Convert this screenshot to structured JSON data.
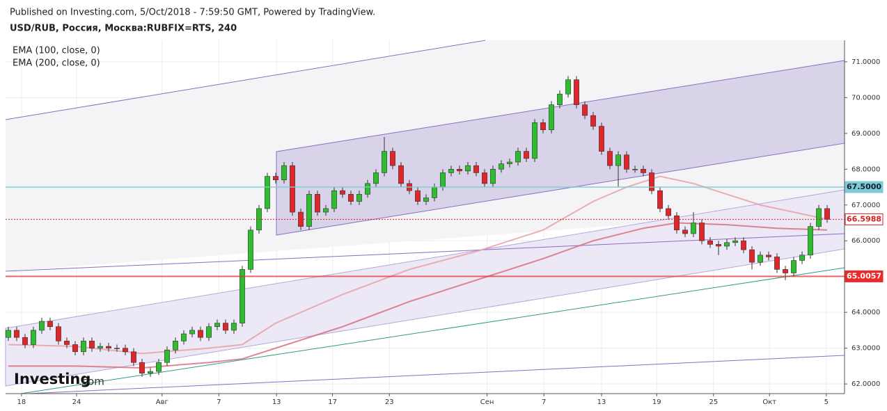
{
  "header": {
    "published": "Published on Investing.com, 5/Oct/2018 - 7:59:50 GMT, Powered by TradingView.",
    "symbol": "USD/RUB, Россия, Москва:RUBFIX=RTS, 240"
  },
  "logo": {
    "brand": "Investing",
    "suffix": ".com"
  },
  "chart_data": {
    "type": "candlestick",
    "up_color": "#2ebd2e",
    "down_color": "#e0262a",
    "xlim": [
      -0.33,
      100.08
    ],
    "ylim": [
      61.73,
      71.6
    ],
    "grid": true,
    "xticks": [
      {
        "value": 1.58,
        "label": "18"
      },
      {
        "value": 8.17,
        "label": "24"
      },
      {
        "value": 18.4,
        "label": "Авг"
      },
      {
        "value": 25.2,
        "label": "7"
      },
      {
        "value": 32.1,
        "label": "13"
      },
      {
        "value": 38.8,
        "label": "17"
      },
      {
        "value": 45.6,
        "label": "23"
      },
      {
        "value": 57.3,
        "label": "Сен"
      },
      {
        "value": 64.1,
        "label": "7"
      },
      {
        "value": 71.0,
        "label": "13"
      },
      {
        "value": 77.6,
        "label": "19"
      },
      {
        "value": 84.4,
        "label": "25"
      },
      {
        "value": 91.1,
        "label": "Окт"
      },
      {
        "value": 97.9,
        "label": "5"
      }
    ],
    "yticks": [
      {
        "value": 62,
        "label": "62.0000"
      },
      {
        "value": 63,
        "label": "63.0000"
      },
      {
        "value": 64,
        "label": "64.0000"
      },
      {
        "value": 65,
        "label": "65.0000"
      },
      {
        "value": 66,
        "label": "66.0000"
      },
      {
        "value": 67,
        "label": "67.0000"
      },
      {
        "value": 68,
        "label": "68.0000"
      },
      {
        "value": 69,
        "label": "69.0000"
      },
      {
        "value": 70,
        "label": "70.0000"
      },
      {
        "value": 71,
        "label": "71.0000"
      }
    ],
    "open": [
      63.3,
      63.5,
      63.3,
      63.1,
      63.5,
      63.75,
      63.6,
      63.2,
      63.1,
      62.9,
      63.2,
      63.0,
      63.05,
      63.0,
      63.0,
      62.9,
      62.6,
      62.3,
      62.35,
      62.6,
      62.95,
      63.2,
      63.4,
      63.5,
      63.3,
      63.6,
      63.7,
      63.5,
      63.7,
      65.2,
      66.3,
      66.9,
      67.8,
      67.7,
      68.1,
      66.8,
      66.4,
      67.3,
      66.8,
      66.9,
      67.4,
      67.3,
      67.1,
      67.3,
      67.6,
      67.9,
      68.5,
      68.1,
      67.6,
      67.4,
      67.1,
      67.2,
      67.5,
      67.9,
      68.0,
      67.95,
      68.1,
      67.9,
      67.6,
      68.0,
      68.15,
      68.2,
      68.5,
      68.3,
      69.3,
      69.1,
      69.8,
      70.1,
      70.5,
      69.8,
      69.5,
      69.2,
      68.5,
      68.1,
      68.4,
      68.0,
      68.0,
      67.9,
      67.4,
      66.9,
      66.7,
      66.3,
      66.2,
      66.5,
      66.0,
      65.9,
      65.85,
      65.95,
      66.0,
      65.75,
      65.4,
      65.6,
      65.55,
      65.2,
      65.1,
      65.45,
      65.6,
      66.4,
      66.9
    ],
    "high": [
      63.6,
      63.6,
      63.4,
      63.6,
      63.85,
      63.85,
      63.7,
      63.3,
      63.2,
      63.3,
      63.3,
      63.15,
      63.15,
      63.1,
      63.1,
      63.0,
      62.7,
      62.45,
      62.7,
      63.05,
      63.3,
      63.5,
      63.6,
      63.6,
      63.7,
      63.8,
      63.8,
      63.8,
      65.3,
      66.4,
      67.0,
      67.9,
      67.9,
      68.2,
      68.2,
      66.9,
      67.4,
      67.4,
      67.0,
      67.5,
      67.5,
      67.4,
      67.4,
      67.7,
      68.0,
      68.9,
      68.6,
      68.2,
      67.7,
      67.5,
      67.3,
      67.6,
      68.0,
      68.1,
      68.1,
      68.2,
      68.2,
      68.0,
      68.1,
      68.25,
      68.3,
      68.6,
      68.6,
      69.4,
      69.4,
      69.9,
      70.2,
      70.6,
      70.6,
      69.9,
      69.6,
      69.3,
      68.6,
      68.5,
      68.5,
      68.1,
      68.1,
      68.0,
      67.5,
      67.0,
      66.8,
      66.4,
      66.8,
      66.6,
      66.1,
      66.0,
      66.05,
      66.1,
      66.1,
      65.85,
      65.7,
      65.7,
      65.65,
      65.3,
      65.55,
      65.7,
      66.5,
      67.0,
      67.0
    ],
    "low": [
      63.2,
      63.2,
      63.0,
      63.0,
      63.4,
      63.5,
      63.1,
      63.0,
      62.8,
      62.8,
      62.9,
      62.9,
      62.9,
      62.9,
      62.8,
      62.5,
      62.2,
      62.2,
      62.25,
      62.5,
      62.85,
      63.1,
      63.3,
      63.2,
      63.2,
      63.5,
      63.4,
      63.4,
      63.6,
      65.1,
      66.2,
      66.8,
      67.6,
      67.6,
      66.7,
      66.3,
      66.3,
      66.7,
      66.7,
      66.8,
      67.2,
      67.0,
      67.0,
      67.2,
      67.5,
      67.8,
      68.0,
      67.5,
      67.3,
      67.0,
      67.0,
      67.1,
      67.4,
      67.8,
      67.85,
      67.85,
      67.8,
      67.5,
      67.5,
      67.9,
      68.05,
      68.1,
      68.2,
      68.2,
      69.0,
      69.0,
      69.7,
      70.0,
      69.7,
      69.4,
      69.1,
      68.4,
      68.0,
      67.5,
      67.9,
      67.9,
      67.8,
      67.3,
      66.8,
      66.6,
      66.2,
      66.1,
      66.1,
      65.9,
      65.8,
      65.6,
      65.75,
      65.85,
      65.65,
      65.2,
      65.3,
      65.45,
      65.1,
      64.9,
      65.0,
      65.35,
      65.5,
      66.3,
      66.5
    ],
    "close": [
      63.5,
      63.3,
      63.1,
      63.5,
      63.75,
      63.6,
      63.2,
      63.1,
      62.9,
      63.2,
      63.0,
      63.05,
      63.0,
      63.0,
      62.9,
      62.6,
      62.3,
      62.35,
      62.6,
      62.95,
      63.2,
      63.4,
      63.5,
      63.3,
      63.6,
      63.7,
      63.5,
      63.7,
      65.2,
      66.3,
      66.9,
      67.8,
      67.7,
      68.1,
      66.8,
      66.4,
      67.3,
      66.8,
      66.9,
      67.4,
      67.3,
      67.1,
      67.3,
      67.6,
      67.9,
      68.5,
      68.1,
      67.6,
      67.4,
      67.1,
      67.2,
      67.5,
      67.9,
      68.0,
      67.95,
      68.1,
      67.9,
      67.6,
      68.0,
      68.15,
      68.2,
      68.5,
      68.3,
      69.3,
      69.1,
      69.8,
      70.1,
      70.5,
      69.8,
      69.5,
      69.2,
      68.5,
      68.1,
      68.4,
      68.0,
      68.0,
      67.9,
      67.4,
      66.9,
      66.7,
      66.3,
      66.2,
      66.5,
      66.0,
      65.9,
      65.85,
      65.95,
      66.0,
      65.75,
      65.4,
      65.6,
      65.55,
      65.2,
      65.1,
      65.45,
      65.6,
      66.4,
      66.9,
      66.6
    ],
    "series": [
      {
        "name": "EMA (100, close, 0)",
        "color": "#e8a0a6",
        "x": [
          0,
          8,
          16,
          24,
          28,
          32,
          40,
          48,
          56,
          64,
          70,
          74,
          78,
          82,
          86,
          90,
          94,
          98
        ],
        "values": [
          63.1,
          63.05,
          62.85,
          63.0,
          63.1,
          63.7,
          64.5,
          65.2,
          65.7,
          66.3,
          67.1,
          67.5,
          67.8,
          67.6,
          67.3,
          67.0,
          66.8,
          66.6
        ]
      },
      {
        "name": "EMA (200, close, 0)",
        "color": "#d8727c",
        "x": [
          0,
          8,
          16,
          24,
          28,
          32,
          40,
          48,
          56,
          64,
          70,
          76,
          80,
          86,
          92,
          98
        ],
        "values": [
          62.5,
          62.5,
          62.45,
          62.6,
          62.7,
          63.0,
          63.6,
          64.3,
          64.9,
          65.5,
          66.0,
          66.35,
          66.5,
          66.45,
          66.35,
          66.3
        ]
      }
    ],
    "levels": [
      {
        "value": 67.5,
        "label": "67.5000",
        "color": "#7fcbd3",
        "style": "solid"
      },
      {
        "value": 66.5988,
        "label": "66.5988",
        "color": "#d42020",
        "style": "dotted"
      },
      {
        "value": 65.0057,
        "label": "65.0057",
        "color": "#e82a2a",
        "style": "solid"
      }
    ]
  }
}
